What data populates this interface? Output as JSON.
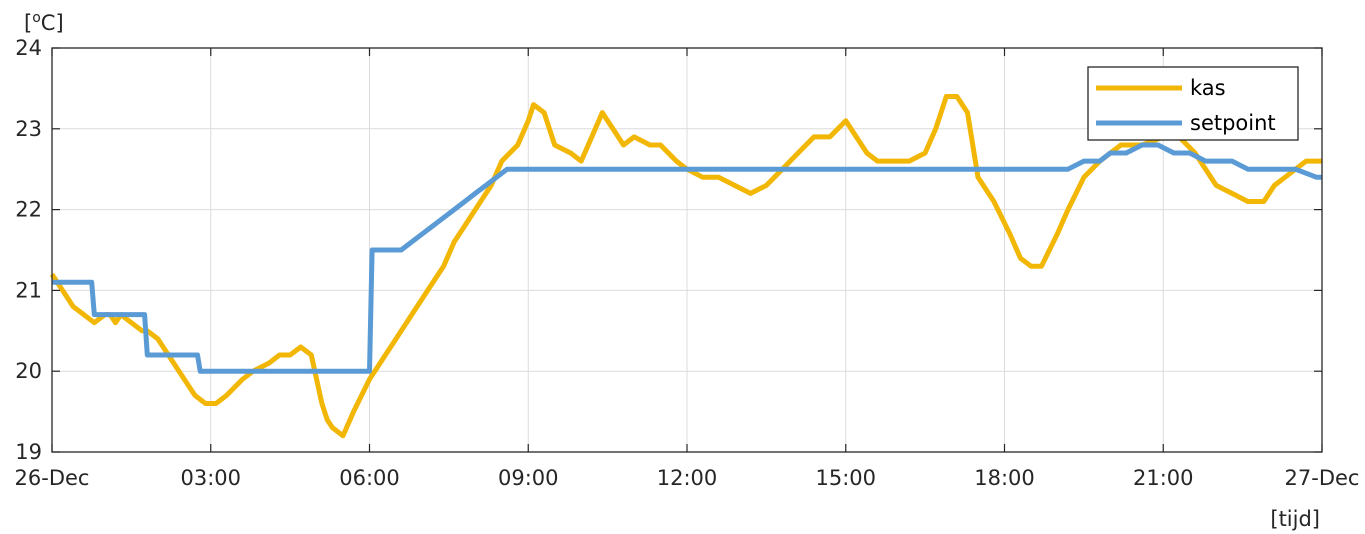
{
  "chart_data": {
    "type": "line",
    "ylabel": "[°C]",
    "ylabel_base": "[",
    "ylabel_sup": "o",
    "ylabel_rest": "C]",
    "xlabel": "[tijd]",
    "ylim": [
      19,
      24
    ],
    "xlim_hours": [
      0,
      24
    ],
    "x_tick_labels": [
      "26-Dec",
      "03:00",
      "06:00",
      "09:00",
      "12:00",
      "15:00",
      "18:00",
      "21:00",
      "27-Dec"
    ],
    "x_tick_hours": [
      0,
      3,
      6,
      9,
      12,
      15,
      18,
      21,
      24
    ],
    "y_ticks": [
      19,
      20,
      21,
      22,
      23,
      24
    ],
    "grid": true,
    "legend_position": "top-right",
    "series": [
      {
        "name": "kas",
        "color": "#f2b705",
        "x_hours": [
          0,
          0.2,
          0.4,
          0.6,
          0.8,
          1.0,
          1.1,
          1.2,
          1.3,
          1.5,
          1.7,
          1.8,
          2.0,
          2.2,
          2.4,
          2.5,
          2.7,
          2.9,
          3.1,
          3.3,
          3.6,
          3.8,
          4.1,
          4.3,
          4.5,
          4.7,
          4.9,
          5.1,
          5.2,
          5.3,
          5.5,
          5.7,
          6.0,
          6.3,
          6.5,
          6.8,
          7.0,
          7.2,
          7.4,
          7.6,
          7.8,
          8.0,
          8.3,
          8.5,
          8.8,
          9.0,
          9.1,
          9.3,
          9.5,
          9.8,
          10.0,
          10.2,
          10.4,
          10.6,
          10.8,
          11.0,
          11.3,
          11.5,
          11.8,
          12.0,
          12.3,
          12.6,
          12.9,
          13.2,
          13.5,
          13.8,
          14.1,
          14.4,
          14.7,
          15.0,
          15.2,
          15.4,
          15.6,
          15.9,
          16.2,
          16.5,
          16.7,
          16.9,
          17.1,
          17.3,
          17.5,
          17.8,
          18.1,
          18.3,
          18.5,
          18.7,
          19.0,
          19.2,
          19.5,
          19.8,
          20.2,
          20.6,
          21.0,
          21.3,
          21.6,
          21.8,
          22.0,
          22.3,
          22.6,
          22.9,
          23.1,
          23.3,
          23.5,
          23.7,
          24.0
        ],
        "values": [
          21.2,
          21.0,
          20.8,
          20.7,
          20.6,
          20.7,
          20.7,
          20.6,
          20.7,
          20.6,
          20.5,
          20.5,
          20.4,
          20.2,
          20.0,
          19.9,
          19.7,
          19.6,
          19.6,
          19.7,
          19.9,
          20.0,
          20.1,
          20.2,
          20.2,
          20.3,
          20.2,
          19.6,
          19.4,
          19.3,
          19.2,
          19.5,
          19.9,
          20.2,
          20.4,
          20.7,
          20.9,
          21.1,
          21.3,
          21.6,
          21.8,
          22.0,
          22.3,
          22.6,
          22.8,
          23.1,
          23.3,
          23.2,
          22.8,
          22.7,
          22.6,
          22.9,
          23.2,
          23.0,
          22.8,
          22.9,
          22.8,
          22.8,
          22.6,
          22.5,
          22.4,
          22.4,
          22.3,
          22.2,
          22.3,
          22.5,
          22.7,
          22.9,
          22.9,
          23.1,
          22.9,
          22.7,
          22.6,
          22.6,
          22.6,
          22.7,
          23.0,
          23.4,
          23.4,
          23.2,
          22.4,
          22.1,
          21.7,
          21.4,
          21.3,
          21.3,
          21.7,
          22.0,
          22.4,
          22.6,
          22.8,
          22.8,
          22.9,
          22.9,
          22.7,
          22.5,
          22.3,
          22.2,
          22.1,
          22.1,
          22.3,
          22.4,
          22.5,
          22.6,
          22.6
        ]
      },
      {
        "name": "setpoint",
        "color": "#5b9bd5",
        "x_hours": [
          0,
          0.75,
          0.8,
          1.75,
          1.8,
          2.75,
          2.8,
          6.0,
          6.05,
          6.6,
          6.8,
          7.0,
          7.2,
          7.4,
          7.6,
          7.8,
          8.0,
          8.2,
          8.4,
          8.6,
          19.2,
          19.5,
          19.8,
          20.0,
          20.3,
          20.6,
          20.9,
          21.2,
          21.5,
          21.8,
          22.0,
          22.3,
          22.6,
          23.5,
          23.9,
          24.0
        ],
        "values": [
          21.1,
          21.1,
          20.7,
          20.7,
          20.2,
          20.2,
          20.0,
          20.0,
          21.5,
          21.5,
          21.6,
          21.7,
          21.8,
          21.9,
          22.0,
          22.1,
          22.2,
          22.3,
          22.4,
          22.5,
          22.5,
          22.6,
          22.6,
          22.7,
          22.7,
          22.8,
          22.8,
          22.7,
          22.7,
          22.6,
          22.6,
          22.6,
          22.5,
          22.5,
          22.4,
          22.4
        ]
      }
    ]
  }
}
